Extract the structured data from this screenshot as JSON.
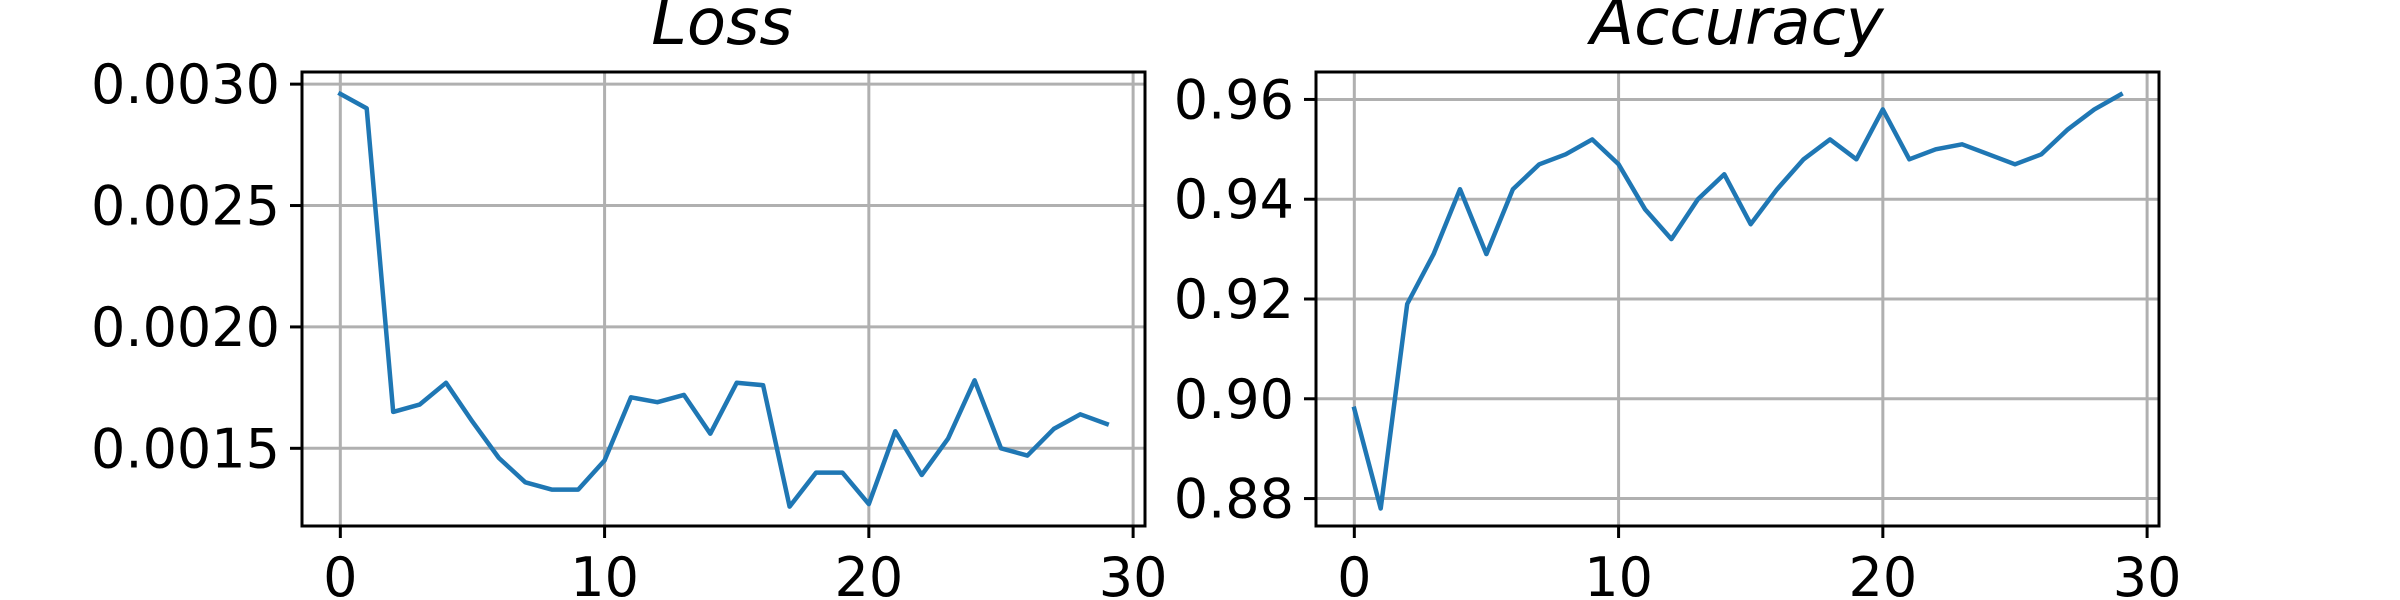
{
  "chart_data": [
    {
      "type": "line",
      "title": "Loss",
      "xlabel": "",
      "ylabel": "",
      "xlim": [
        -1.45,
        30.45
      ],
      "ylim": [
        0.00118,
        0.00305
      ],
      "x_ticks": [
        0,
        10,
        20,
        30
      ],
      "x_tick_labels": [
        "0",
        "10",
        "20",
        "30"
      ],
      "y_ticks": [
        0.0015,
        0.002,
        0.0025,
        0.003
      ],
      "y_tick_labels": [
        "0.0015",
        "0.0020",
        "0.0025",
        "0.0030"
      ],
      "grid": true,
      "series": [
        {
          "color": "#1f77b4",
          "x": [
            0,
            1,
            2,
            3,
            4,
            5,
            6,
            7,
            8,
            9,
            10,
            11,
            12,
            13,
            14,
            15,
            16,
            17,
            18,
            19,
            20,
            21,
            22,
            23,
            24,
            25,
            26,
            27,
            28,
            29
          ],
          "y": [
            0.00296,
            0.0029,
            0.00165,
            0.00168,
            0.00177,
            0.00161,
            0.00146,
            0.00136,
            0.00133,
            0.00133,
            0.00145,
            0.00171,
            0.00169,
            0.00172,
            0.00156,
            0.00177,
            0.00176,
            0.00126,
            0.0014,
            0.0014,
            0.00127,
            0.00157,
            0.00139,
            0.00154,
            0.00178,
            0.0015,
            0.00147,
            0.00158,
            0.00164,
            0.0016
          ]
        }
      ]
    },
    {
      "type": "line",
      "title": "Accuracy",
      "xlabel": "",
      "ylabel": "",
      "xlim": [
        -1.45,
        30.45
      ],
      "ylim": [
        0.8745,
        0.9655
      ],
      "x_ticks": [
        0,
        10,
        20,
        30
      ],
      "x_tick_labels": [
        "0",
        "10",
        "20",
        "30"
      ],
      "y_ticks": [
        0.88,
        0.9,
        0.92,
        0.94,
        0.96
      ],
      "y_tick_labels": [
        "0.88",
        "0.90",
        "0.92",
        "0.94",
        "0.96"
      ],
      "grid": true,
      "series": [
        {
          "color": "#1f77b4",
          "x": [
            0,
            1,
            2,
            3,
            4,
            5,
            6,
            7,
            8,
            9,
            10,
            11,
            12,
            13,
            14,
            15,
            16,
            17,
            18,
            19,
            20,
            21,
            22,
            23,
            24,
            25,
            26,
            27,
            28,
            29
          ],
          "y": [
            0.898,
            0.878,
            0.919,
            0.929,
            0.942,
            0.929,
            0.942,
            0.947,
            0.949,
            0.952,
            0.947,
            0.938,
            0.932,
            0.94,
            0.945,
            0.935,
            0.942,
            0.948,
            0.952,
            0.948,
            0.958,
            0.948,
            0.95,
            0.951,
            0.949,
            0.947,
            0.949,
            0.954,
            0.958,
            0.961
          ]
        }
      ]
    }
  ]
}
